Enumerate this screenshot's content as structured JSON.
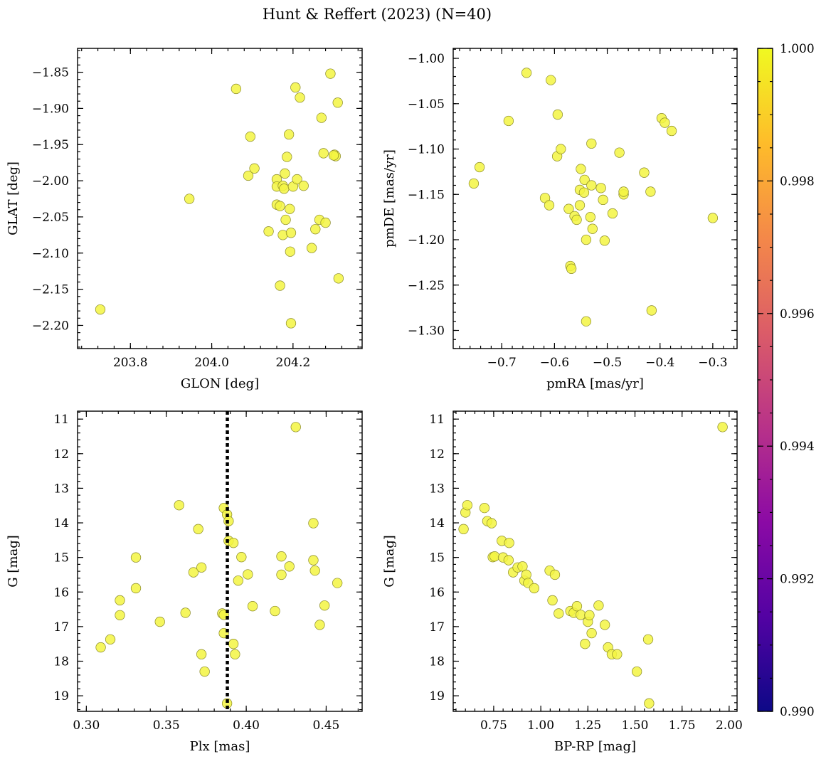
{
  "title": "Hunt & Reffert (2023) (N=40)",
  "colors": {
    "point_fill": "#f3f542",
    "point_edge": "#8a8a28",
    "reference_line": "#000000"
  },
  "chart_data": [
    {
      "type": "scatter",
      "xlabel": "GLON [deg]",
      "ylabel": "GLAT [deg]",
      "xlim": [
        203.67,
        204.37
      ],
      "ylim": [
        -2.232,
        -1.817
      ],
      "y_inverted": false,
      "xticks": [
        203.8,
        204.0,
        204.2
      ],
      "xtick_labels": [
        "203.8",
        "204.0",
        "204.2"
      ],
      "yticks": [
        -2.2,
        -2.15,
        -2.1,
        -2.05,
        -2.0,
        -1.95,
        -1.9,
        -1.85
      ],
      "ytick_labels": [
        "−2.20",
        "−2.15",
        "−2.10",
        "−2.05",
        "−2.00",
        "−1.95",
        "−1.90",
        "−1.85"
      ],
      "points": [
        [
          203.726,
          -2.178
        ],
        [
          203.945,
          -2.025
        ],
        [
          204.06,
          -1.873
        ],
        [
          204.095,
          -1.939
        ],
        [
          204.09,
          -1.993
        ],
        [
          204.105,
          -1.983
        ],
        [
          204.14,
          -2.07
        ],
        [
          204.16,
          -1.998
        ],
        [
          204.16,
          -2.008
        ],
        [
          204.16,
          -2.033
        ],
        [
          204.168,
          -2.035
        ],
        [
          204.168,
          -2.145
        ],
        [
          204.175,
          -2.007
        ],
        [
          204.175,
          -2.075
        ],
        [
          204.178,
          -2.011
        ],
        [
          204.18,
          -1.99
        ],
        [
          204.182,
          -2.054
        ],
        [
          204.185,
          -1.967
        ],
        [
          204.19,
          -1.936
        ],
        [
          204.192,
          -2.039
        ],
        [
          204.193,
          -2.098
        ],
        [
          204.195,
          -2.072
        ],
        [
          204.195,
          -2.197
        ],
        [
          204.2,
          -2.008
        ],
        [
          204.206,
          -1.871
        ],
        [
          204.21,
          -1.998
        ],
        [
          204.217,
          -1.885
        ],
        [
          204.226,
          -2.007
        ],
        [
          204.246,
          -2.093
        ],
        [
          204.255,
          -2.067
        ],
        [
          204.265,
          -2.054
        ],
        [
          204.27,
          -1.913
        ],
        [
          204.275,
          -1.962
        ],
        [
          204.28,
          -2.058
        ],
        [
          204.292,
          -1.852
        ],
        [
          204.302,
          -1.964
        ],
        [
          204.305,
          -1.966
        ],
        [
          204.31,
          -1.892
        ],
        [
          204.312,
          -2.135
        ],
        [
          204.3,
          -1.965
        ]
      ]
    },
    {
      "type": "scatter",
      "xlabel": "pmRA [mas/yr]",
      "ylabel": "pmDE [mas/yr]",
      "xlim": [
        -0.792,
        -0.254
      ],
      "ylim": [
        -1.32,
        -0.989
      ],
      "y_inverted": false,
      "xticks": [
        -0.7,
        -0.6,
        -0.5,
        -0.4,
        -0.3
      ],
      "xtick_labels": [
        "−0.7",
        "−0.6",
        "−0.5",
        "−0.4",
        "−0.3"
      ],
      "yticks": [
        -1.3,
        -1.25,
        -1.2,
        -1.15,
        -1.1,
        -1.05,
        -1.0
      ],
      "ytick_labels": [
        "−1.30",
        "−1.25",
        "−1.20",
        "−1.15",
        "−1.10",
        "−1.05",
        "−1.00"
      ],
      "points": [
        [
          -0.753,
          -1.138
        ],
        [
          -0.742,
          -1.12
        ],
        [
          -0.687,
          -1.069
        ],
        [
          -0.653,
          -1.016
        ],
        [
          -0.607,
          -1.024
        ],
        [
          -0.594,
          -1.062
        ],
        [
          -0.595,
          -1.108
        ],
        [
          -0.588,
          -1.1
        ],
        [
          -0.618,
          -1.154
        ],
        [
          -0.61,
          -1.162
        ],
        [
          -0.573,
          -1.166
        ],
        [
          -0.57,
          -1.229
        ],
        [
          -0.568,
          -1.232
        ],
        [
          -0.562,
          -1.174
        ],
        [
          -0.558,
          -1.178
        ],
        [
          -0.552,
          -1.145
        ],
        [
          -0.552,
          -1.162
        ],
        [
          -0.55,
          -1.122
        ],
        [
          -0.544,
          -1.148
        ],
        [
          -0.543,
          -1.134
        ],
        [
          -0.54,
          -1.2
        ],
        [
          -0.54,
          -1.29
        ],
        [
          -0.532,
          -1.175
        ],
        [
          -0.53,
          -1.094
        ],
        [
          -0.53,
          -1.14
        ],
        [
          -0.528,
          -1.188
        ],
        [
          -0.512,
          -1.143
        ],
        [
          -0.508,
          -1.156
        ],
        [
          -0.505,
          -1.201
        ],
        [
          -0.49,
          -1.171
        ],
        [
          -0.477,
          -1.104
        ],
        [
          -0.469,
          -1.15
        ],
        [
          -0.469,
          -1.147
        ],
        [
          -0.43,
          -1.126
        ],
        [
          -0.418,
          -1.147
        ],
        [
          -0.416,
          -1.278
        ],
        [
          -0.397,
          -1.066
        ],
        [
          -0.391,
          -1.071
        ],
        [
          -0.378,
          -1.08
        ],
        [
          -0.3,
          -1.176
        ]
      ]
    },
    {
      "type": "scatter",
      "xlabel": "Plx [mas]",
      "ylabel": "G [mag]",
      "xlim": [
        0.2945,
        0.4725
      ],
      "ylim": [
        19.45,
        10.77
      ],
      "y_inverted": true,
      "xticks": [
        0.3,
        0.35,
        0.4,
        0.45
      ],
      "xtick_labels": [
        "0.30",
        "0.35",
        "0.40",
        "0.45"
      ],
      "yticks": [
        11,
        12,
        13,
        14,
        15,
        16,
        17,
        18,
        19
      ],
      "ytick_labels": [
        "11",
        "12",
        "13",
        "14",
        "15",
        "16",
        "17",
        "18",
        "19"
      ],
      "reference_line_x": 0.3882,
      "points": [
        [
          0.309,
          17.6
        ],
        [
          0.315,
          17.37
        ],
        [
          0.321,
          16.24
        ],
        [
          0.321,
          16.67
        ],
        [
          0.331,
          15.0
        ],
        [
          0.331,
          15.89
        ],
        [
          0.346,
          16.86
        ],
        [
          0.358,
          13.49
        ],
        [
          0.362,
          16.6
        ],
        [
          0.367,
          15.43
        ],
        [
          0.37,
          14.18
        ],
        [
          0.372,
          15.29
        ],
        [
          0.372,
          17.8
        ],
        [
          0.374,
          18.3
        ],
        [
          0.385,
          16.62
        ],
        [
          0.386,
          13.57
        ],
        [
          0.386,
          16.66
        ],
        [
          0.386,
          17.19
        ],
        [
          0.388,
          13.76
        ],
        [
          0.388,
          19.22
        ],
        [
          0.389,
          13.95
        ],
        [
          0.389,
          14.52
        ],
        [
          0.392,
          14.58
        ],
        [
          0.392,
          17.5
        ],
        [
          0.393,
          17.8
        ],
        [
          0.395,
          15.67
        ],
        [
          0.397,
          14.99
        ],
        [
          0.401,
          15.49
        ],
        [
          0.404,
          16.41
        ],
        [
          0.418,
          16.55
        ],
        [
          0.422,
          14.97
        ],
        [
          0.422,
          15.5
        ],
        [
          0.427,
          15.26
        ],
        [
          0.431,
          11.23
        ],
        [
          0.442,
          14.01
        ],
        [
          0.442,
          15.08
        ],
        [
          0.443,
          15.38
        ],
        [
          0.446,
          16.95
        ],
        [
          0.449,
          16.39
        ],
        [
          0.457,
          15.74
        ]
      ]
    },
    {
      "type": "scatter",
      "xlabel": "BP-RP [mag]",
      "ylabel": "G [mag]",
      "xlim": [
        0.535,
        2.042
      ],
      "ylim": [
        19.45,
        10.77
      ],
      "y_inverted": true,
      "xticks": [
        0.75,
        1.0,
        1.25,
        1.5,
        1.75,
        2.0
      ],
      "xtick_labels": [
        "0.75",
        "1.00",
        "1.25",
        "1.50",
        "1.75",
        "2.00"
      ],
      "yticks": [
        11,
        12,
        13,
        14,
        15,
        16,
        17,
        18,
        19
      ],
      "ytick_labels": [
        "11",
        "12",
        "13",
        "14",
        "15",
        "16",
        "17",
        "18",
        "19"
      ],
      "points": [
        [
          0.59,
          14.18
        ],
        [
          0.6,
          13.7
        ],
        [
          0.61,
          13.49
        ],
        [
          0.701,
          13.57
        ],
        [
          0.716,
          13.95
        ],
        [
          0.739,
          14.01
        ],
        [
          0.745,
          14.99
        ],
        [
          0.755,
          14.97
        ],
        [
          0.793,
          14.52
        ],
        [
          0.8,
          15.0
        ],
        [
          0.832,
          14.58
        ],
        [
          0.829,
          15.08
        ],
        [
          0.853,
          15.43
        ],
        [
          0.877,
          15.29
        ],
        [
          0.903,
          15.26
        ],
        [
          0.913,
          15.67
        ],
        [
          0.923,
          15.5
        ],
        [
          0.933,
          15.74
        ],
        [
          0.965,
          15.89
        ],
        [
          1.047,
          15.38
        ],
        [
          1.062,
          16.24
        ],
        [
          1.075,
          15.5
        ],
        [
          1.095,
          16.62
        ],
        [
          1.157,
          16.55
        ],
        [
          1.175,
          16.6
        ],
        [
          1.192,
          16.41
        ],
        [
          1.212,
          16.66
        ],
        [
          1.235,
          17.5
        ],
        [
          1.25,
          16.86
        ],
        [
          1.258,
          16.67
        ],
        [
          1.27,
          17.19
        ],
        [
          1.307,
          16.39
        ],
        [
          1.34,
          16.95
        ],
        [
          1.357,
          17.6
        ],
        [
          1.377,
          17.8
        ],
        [
          1.405,
          17.8
        ],
        [
          1.51,
          18.3
        ],
        [
          1.57,
          17.37
        ],
        [
          1.575,
          19.22
        ],
        [
          1.965,
          11.23
        ]
      ]
    }
  ],
  "colorbar": {
    "cmap": "plasma",
    "range": [
      0.99,
      1.0
    ],
    "ticks": [
      0.99,
      0.992,
      0.994,
      0.996,
      0.998,
      1.0
    ],
    "tick_labels": [
      "0.990",
      "0.992",
      "0.994",
      "0.996",
      "0.998",
      "1.000"
    ],
    "stops": [
      "#0d0887",
      "#5302a3",
      "#8b0aa5",
      "#b83289",
      "#db5c68",
      "#f48849",
      "#febc2a",
      "#f0f921"
    ]
  }
}
